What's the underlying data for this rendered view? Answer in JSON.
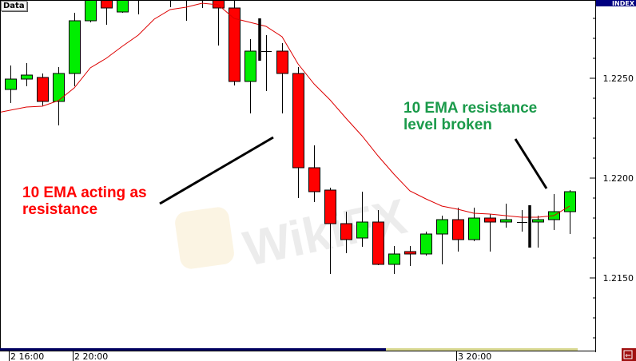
{
  "header": {
    "data_tag": "Data",
    "axis_title": "INDEX"
  },
  "watermark": "WikiFX",
  "colors": {
    "up": "#00ee00",
    "down": "#ff0000",
    "ema": "#dd0000",
    "annotation_red": "#ff0000",
    "annotation_green": "#1a9a4a",
    "axis_header": "#000080",
    "scroll_navy": "#000060",
    "scroll_yellow": "#d8d890"
  },
  "chart_data": {
    "type": "candlestick",
    "title": "",
    "grid": false,
    "ylim": [
      1.21144,
      1.22892
    ],
    "y_ticks": [
      "1.2250",
      "1.2200",
      "1.2150"
    ],
    "y_tick_values": [
      1.225,
      1.22,
      1.215
    ],
    "x_tick_labels": [
      {
        "label": "2 16:00",
        "index": 0
      },
      {
        "label": "2 20:00",
        "index": 4
      },
      {
        "label": "3 20:00",
        "index": 28
      }
    ],
    "candles": [
      [
        1.22444,
        1.22564,
        1.22376,
        1.22496
      ],
      [
        1.22496,
        1.22576,
        1.2246,
        1.22516
      ],
      [
        1.22504,
        1.22524,
        1.2236,
        1.22384
      ],
      [
        1.22384,
        1.22556,
        1.22264,
        1.22524
      ],
      [
        1.22524,
        1.22828,
        1.2246,
        1.22788
      ],
      [
        1.22788,
        1.22932,
        1.2278,
        1.22912
      ],
      [
        1.22912,
        1.22932,
        1.22768,
        1.22852
      ],
      [
        1.22832,
        1.22932,
        1.22828,
        1.22912
      ],
      [
        1.22932,
        1.23012,
        1.2282,
        1.22972
      ],
      [
        1.22952,
        1.23032,
        1.22888,
        1.22992
      ],
      [
        1.22952,
        1.23,
        1.22856,
        1.22912
      ],
      [
        1.22904,
        1.2298,
        1.22788,
        1.22924
      ],
      [
        1.22908,
        1.2299,
        1.22852,
        1.22932
      ],
      [
        1.22912,
        1.22932,
        1.22664,
        1.22852
      ],
      [
        1.22852,
        1.22892,
        1.22464,
        1.22484
      ],
      [
        1.22484,
        1.22696,
        1.22324,
        1.22636
      ],
      [
        1.22636,
        1.22716,
        1.22436,
        1.22636
      ],
      [
        1.22636,
        1.22676,
        1.22324,
        1.22524
      ],
      [
        1.22524,
        1.22556,
        1.219,
        1.22052
      ],
      [
        1.22052,
        1.22164,
        1.2188,
        1.21932
      ],
      [
        1.2194,
        1.21952,
        1.2152,
        1.21772
      ],
      [
        1.21772,
        1.21832,
        1.21624,
        1.21692
      ],
      [
        1.217,
        1.21932,
        1.21656,
        1.2178
      ],
      [
        1.2178,
        1.2184,
        1.21564,
        1.21568
      ],
      [
        1.21568,
        1.2166,
        1.2152,
        1.2162
      ],
      [
        1.21632,
        1.2166,
        1.2156,
        1.2162
      ],
      [
        1.2162,
        1.21732,
        1.21612,
        1.2172
      ],
      [
        1.2172,
        1.21812,
        1.21568,
        1.21792
      ],
      [
        1.21792,
        1.21852,
        1.21632,
        1.21692
      ],
      [
        1.21692,
        1.21852,
        1.21684,
        1.218
      ],
      [
        1.218,
        1.2182,
        1.21632,
        1.2178
      ],
      [
        1.2178,
        1.21872,
        1.21752,
        1.21792
      ],
      [
        1.2178,
        1.2184,
        1.21732,
        1.2178
      ],
      [
        1.2178,
        1.21812,
        1.21652,
        1.21792
      ],
      [
        1.21792,
        1.2192,
        1.2174,
        1.21832
      ],
      [
        1.21832,
        1.2194,
        1.2172,
        1.21932
      ]
    ],
    "candle_fields": [
      "open",
      "high",
      "low",
      "close"
    ],
    "ema": [
      1.2233,
      1.22356,
      1.2236,
      1.22388,
      1.22452,
      1.22552,
      1.226,
      1.2266,
      1.22716,
      1.22796,
      1.22844,
      1.22856,
      1.22876,
      1.22868,
      1.228,
      1.2278,
      1.2276,
      1.22708,
      1.22572,
      1.22472,
      1.22392,
      1.223,
      1.22212,
      1.22112,
      1.2202,
      1.21936,
      1.21896,
      1.2186,
      1.21844,
      1.21824,
      1.2182,
      1.21812,
      1.21804,
      1.21804,
      1.21812,
      1.2186
    ],
    "annotations": {
      "left": [
        "10 EMA acting as",
        "resistance"
      ],
      "right": [
        "10 EMA resistance",
        "level broken"
      ]
    }
  }
}
